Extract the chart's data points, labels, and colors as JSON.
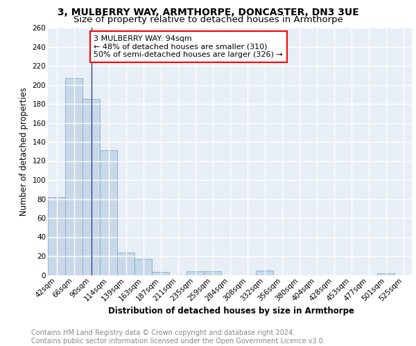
{
  "title1": "3, MULBERRY WAY, ARMTHORPE, DONCASTER, DN3 3UE",
  "title2": "Size of property relative to detached houses in Armthorpe",
  "xlabel": "Distribution of detached houses by size in Armthorpe",
  "ylabel": "Number of detached properties",
  "categories": [
    "42sqm",
    "66sqm",
    "90sqm",
    "114sqm",
    "139sqm",
    "163sqm",
    "187sqm",
    "211sqm",
    "235sqm",
    "259sqm",
    "284sqm",
    "308sqm",
    "332sqm",
    "356sqm",
    "380sqm",
    "404sqm",
    "428sqm",
    "453sqm",
    "477sqm",
    "501sqm",
    "525sqm"
  ],
  "values": [
    82,
    207,
    185,
    131,
    24,
    17,
    3,
    0,
    4,
    4,
    0,
    0,
    5,
    0,
    0,
    0,
    0,
    0,
    0,
    2,
    0
  ],
  "bar_color": "#c8d8e8",
  "bar_edge_color": "#7bafd4",
  "vline_x_index": 2,
  "vline_color": "#2c3e8c",
  "annotation_text": "3 MULBERRY WAY: 94sqm\n← 48% of detached houses are smaller (310)\n50% of semi-detached houses are larger (326) →",
  "annotation_box_color": "white",
  "annotation_box_edge": "red",
  "ylim": [
    0,
    260
  ],
  "yticks": [
    0,
    20,
    40,
    60,
    80,
    100,
    120,
    140,
    160,
    180,
    200,
    220,
    240,
    260
  ],
  "bg_color": "#e8eef5",
  "plot_bg_color": "#e8eef5",
  "grid_color": "white",
  "footer_text": "Contains HM Land Registry data © Crown copyright and database right 2024.\nContains public sector information licensed under the Open Government Licence v3.0.",
  "title1_fontsize": 10,
  "title2_fontsize": 9.5,
  "xlabel_fontsize": 8.5,
  "ylabel_fontsize": 8.5,
  "tick_fontsize": 7.5,
  "annotation_fontsize": 8,
  "footer_fontsize": 7
}
